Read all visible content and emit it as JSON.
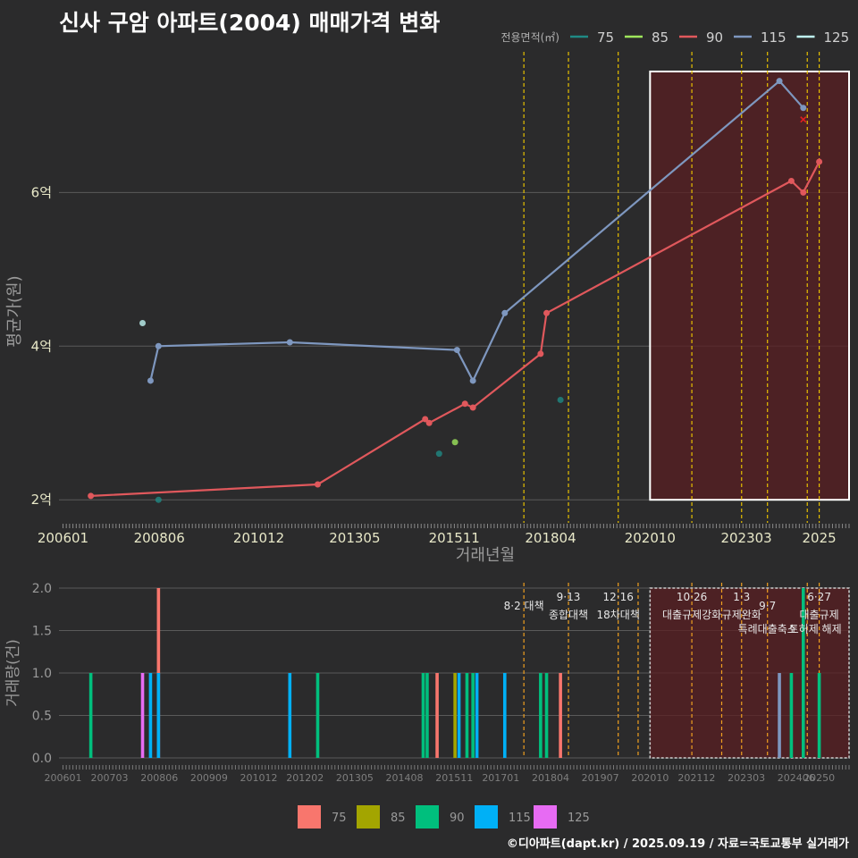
{
  "title": "신사 구암 아파트(2004) 매매가격 변화",
  "credit": "©디아파트(dapt.kr) / 2025.09.19 / 자료=국토교통부 실거래가",
  "colors": {
    "background": "#2b2b2c",
    "grid": "#5a5a5a",
    "policy_line": "#e7c000",
    "highlight_fill": "#5a1f21",
    "highlight_border": "#ffffff"
  },
  "chart_data": [
    {
      "type": "line",
      "id": "price",
      "xlabel": "거래년월",
      "ylabel": "평균가(원)",
      "ylim": [
        1.7,
        7.9
      ],
      "xlim": [
        2005.9,
        2025.75
      ],
      "y_ticks": [
        {
          "v": 2,
          "label": "2억"
        },
        {
          "v": 4,
          "label": "4억"
        },
        {
          "v": 6,
          "label": "6억"
        }
      ],
      "x_ticks": [
        {
          "v": 2006.0,
          "label": "200601"
        },
        {
          "v": 2008.42,
          "label": "200806"
        },
        {
          "v": 2010.92,
          "label": "201012"
        },
        {
          "v": 2013.33,
          "label": "201305"
        },
        {
          "v": 2015.83,
          "label": "201511"
        },
        {
          "v": 2018.25,
          "label": "201804"
        },
        {
          "v": 2020.75,
          "label": "202010"
        },
        {
          "v": 2023.17,
          "label": "202303"
        },
        {
          "v": 2025.0,
          "label": "2025"
        }
      ],
      "legend_title": "전용면적(㎡)",
      "legend_position": "top-right",
      "legend": [
        {
          "name": "75",
          "color": "#1f8a84"
        },
        {
          "name": "85",
          "color": "#9ee65c"
        },
        {
          "name": "90",
          "color": "#e0585c"
        },
        {
          "name": "115",
          "color": "#7e97bf"
        },
        {
          "name": "125",
          "color": "#bff5f3"
        }
      ],
      "series": [
        {
          "name": "90",
          "color": "#e0585c",
          "x": [
            2006.7,
            2012.4,
            2015.1,
            2015.2,
            2016.1,
            2016.3,
            2018.0,
            2018.15,
            2024.3,
            2024.6,
            2025.0
          ],
          "y": [
            2.05,
            2.2,
            3.05,
            3.0,
            3.25,
            3.2,
            3.9,
            4.43,
            6.15,
            6.0,
            6.4
          ]
        },
        {
          "name": "115",
          "color": "#7e97bf",
          "x": [
            2008.2,
            2008.4,
            2011.7,
            2015.9,
            2016.3,
            2017.1,
            2024.0,
            2024.6
          ],
          "y": [
            3.55,
            4.0,
            4.05,
            3.95,
            3.55,
            4.43,
            7.45,
            7.1
          ]
        }
      ],
      "points": [
        {
          "size": "125",
          "x": 2008.0,
          "y": 4.3,
          "color": "#bff5f3"
        },
        {
          "size": "75",
          "x": 2008.4,
          "y": 2.0,
          "color": "#1f8a84"
        },
        {
          "size": "75",
          "x": 2015.45,
          "y": 2.6,
          "color": "#1f8a84"
        },
        {
          "size": "85",
          "x": 2015.85,
          "y": 2.75,
          "color": "#9ee65c"
        },
        {
          "size": "75",
          "x": 2018.5,
          "y": 3.3,
          "color": "#1f8a84"
        }
      ],
      "cancelled": [
        {
          "x": 2024.6,
          "y": 6.95
        }
      ],
      "highlight": {
        "x0": 2020.75,
        "x1": 2025.75
      },
      "policy_lines": [
        2017.58,
        2018.7,
        2019.95,
        2021.8,
        2023.05,
        2023.7,
        2024.7,
        2025.0
      ]
    },
    {
      "type": "bar",
      "id": "volume",
      "ylabel": "거래량(건)",
      "ylim": [
        0,
        2.0
      ],
      "xlim": [
        2005.9,
        2025.75
      ],
      "y_ticks": [
        {
          "v": 0,
          "label": "0.0"
        },
        {
          "v": 0.5,
          "label": "0.5"
        },
        {
          "v": 1.0,
          "label": "1.0"
        },
        {
          "v": 1.5,
          "label": "1.5"
        },
        {
          "v": 2.0,
          "label": "2.0"
        }
      ],
      "x_ticks": [
        {
          "v": 2006.0,
          "label": "200601"
        },
        {
          "v": 2007.17,
          "label": "200703"
        },
        {
          "v": 2008.42,
          "label": "200806"
        },
        {
          "v": 2009.67,
          "label": "200909"
        },
        {
          "v": 2010.92,
          "label": "201012"
        },
        {
          "v": 2012.08,
          "label": "201202"
        },
        {
          "v": 2013.33,
          "label": "201305"
        },
        {
          "v": 2014.58,
          "label": "201408"
        },
        {
          "v": 2015.83,
          "label": "201511"
        },
        {
          "v": 2017.0,
          "label": "201701"
        },
        {
          "v": 2018.25,
          "label": "201804"
        },
        {
          "v": 2019.5,
          "label": "201907"
        },
        {
          "v": 2020.75,
          "label": "202010"
        },
        {
          "v": 2021.92,
          "label": "202112"
        },
        {
          "v": 2023.17,
          "label": "202303"
        },
        {
          "v": 2024.42,
          "label": "202406"
        },
        {
          "v": 2025.0,
          "label": "20250"
        }
      ],
      "legend_position": "bottom",
      "legend": [
        {
          "name": "75",
          "color": "#f8766d"
        },
        {
          "name": "85",
          "color": "#a3a500"
        },
        {
          "name": "90",
          "color": "#00bf7d"
        },
        {
          "name": "115",
          "color": "#00b0f6"
        },
        {
          "name": "125",
          "color": "#e76bf3"
        }
      ],
      "bars": [
        {
          "x": 2006.7,
          "v": 1,
          "color": "#00bf7d"
        },
        {
          "x": 2008.0,
          "v": 1,
          "color": "#e76bf3"
        },
        {
          "x": 2008.2,
          "v": 1,
          "color": "#00b0f6"
        },
        {
          "x": 2008.4,
          "v": 2,
          "color": "#f8766d"
        },
        {
          "x": 2008.4,
          "v": 1,
          "color": "#00b0f6"
        },
        {
          "x": 2011.7,
          "v": 1,
          "color": "#00b0f6"
        },
        {
          "x": 2012.4,
          "v": 1,
          "color": "#00bf7d"
        },
        {
          "x": 2015.05,
          "v": 1,
          "color": "#00bf7d"
        },
        {
          "x": 2015.15,
          "v": 1,
          "color": "#00bf7d"
        },
        {
          "x": 2015.4,
          "v": 1,
          "color": "#f8766d"
        },
        {
          "x": 2015.85,
          "v": 1,
          "color": "#a3a500"
        },
        {
          "x": 2015.95,
          "v": 1,
          "color": "#00b0f6"
        },
        {
          "x": 2016.15,
          "v": 1,
          "color": "#00bf7d"
        },
        {
          "x": 2016.3,
          "v": 1,
          "color": "#00bf7d"
        },
        {
          "x": 2016.4,
          "v": 1,
          "color": "#00b0f6"
        },
        {
          "x": 2017.1,
          "v": 1,
          "color": "#00b0f6"
        },
        {
          "x": 2018.0,
          "v": 1,
          "color": "#00bf7d"
        },
        {
          "x": 2018.15,
          "v": 1,
          "color": "#00bf7d"
        },
        {
          "x": 2018.5,
          "v": 1,
          "color": "#f8766d"
        },
        {
          "x": 2024.0,
          "v": 1,
          "color": "#7e97bf"
        },
        {
          "x": 2024.3,
          "v": 1,
          "color": "#00bf7d"
        },
        {
          "x": 2024.6,
          "v": 2,
          "color": "#00bf7d"
        },
        {
          "x": 2025.0,
          "v": 1,
          "color": "#00bf7d"
        }
      ],
      "highlight": {
        "x0": 2020.75,
        "x1": 2025.75
      },
      "policy_lines": [
        2017.58,
        2018.7,
        2019.95,
        2020.45,
        2021.8,
        2022.55,
        2023.05,
        2023.7,
        2024.7,
        2025.0
      ],
      "annotations": [
        {
          "x": 2017.58,
          "row": 1,
          "date": "",
          "text": "8·2 대책"
        },
        {
          "x": 2018.7,
          "row": 0,
          "date": "9·13",
          "text": "종합대책"
        },
        {
          "x": 2019.95,
          "row": 0,
          "date": "12·16",
          "text": "18차대책"
        },
        {
          "x": 2021.8,
          "row": 0,
          "date": "10·26",
          "text": "대출규제강화"
        },
        {
          "x": 2023.05,
          "row": 0,
          "date": "1·3",
          "text": "규제완화"
        },
        {
          "x": 2023.7,
          "row": 1,
          "date": "",
          "text": "9·7"
        },
        {
          "x": 2023.7,
          "row": 2,
          "date": "",
          "text": "특례대출축소"
        },
        {
          "x": 2025.0,
          "row": 0,
          "date": "6·27",
          "text": "대출규제"
        },
        {
          "x": 2024.9,
          "row": 2,
          "date": "",
          "text": "토허제 해제"
        }
      ]
    }
  ]
}
